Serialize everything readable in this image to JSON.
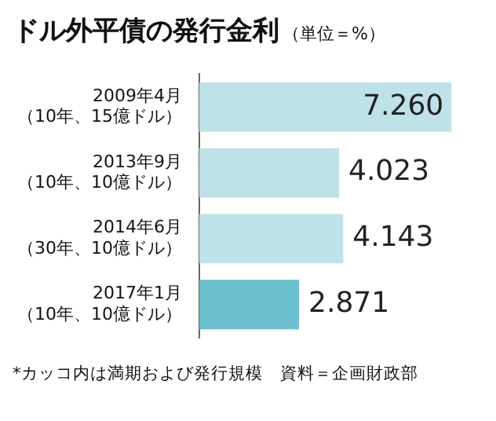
{
  "chart_data": {
    "type": "bar",
    "orientation": "horizontal",
    "title": "ドル外平債の発行金利",
    "subtitle": "（単位＝%）",
    "categories": [
      "2009年4月（10年、15億ドル）",
      "2013年9月（10年、10億ドル）",
      "2014年6月（30年、10億ドル）",
      "2017年1月（10年、10億ドル）"
    ],
    "values": [
      7.26,
      4.023,
      4.143,
      2.871
    ],
    "value_labels": [
      "7.260",
      "4.023",
      "4.143",
      "2.871"
    ],
    "colors": [
      "#bfe1e8",
      "#bfe1e8",
      "#bfe1e8",
      "#6cbfcc"
    ],
    "annotations": [
      "*カッコ内は満期および発行規模　資料＝企画財政部"
    ]
  }
}
